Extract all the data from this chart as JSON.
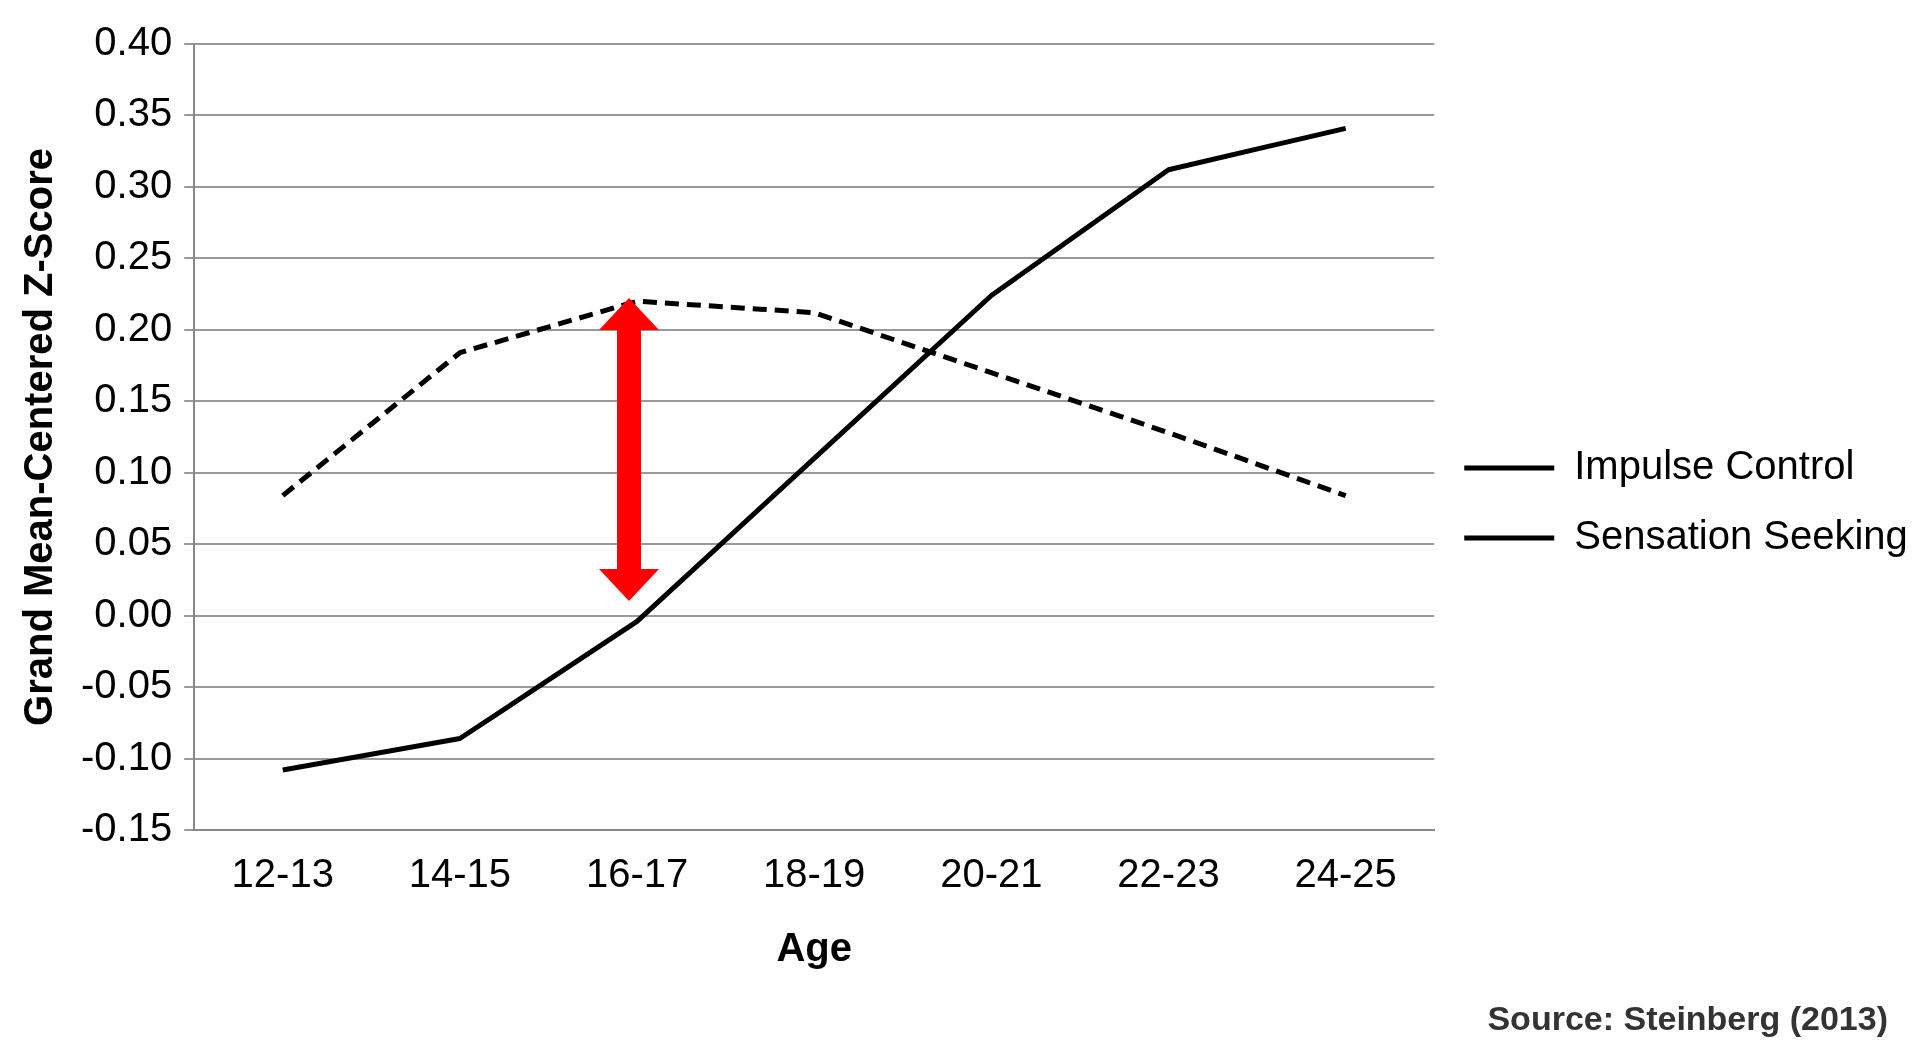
{
  "chart_data": {
    "type": "line",
    "xlabel": "Age",
    "ylabel": "Grand Mean-Centered Z-Score",
    "categories": [
      "12-13",
      "14-15",
      "16-17",
      "18-19",
      "20-21",
      "22-23",
      "24-25"
    ],
    "series": [
      {
        "name": "Impulse Control",
        "color": "#000000",
        "line_style": "solid",
        "values": [
          -0.108,
          -0.086,
          -0.004,
          0.11,
          0.224,
          0.312,
          0.341
        ]
      },
      {
        "name": "Sensation Seeking",
        "color": "#000000",
        "line_style": "dashed",
        "values": [
          0.084,
          0.184,
          0.22,
          0.212,
          0.17,
          0.128,
          0.084
        ]
      }
    ],
    "ylim": [
      -0.15,
      0.4
    ],
    "yticks": [
      {
        "value": -0.15,
        "label": "-0.15"
      },
      {
        "value": -0.1,
        "label": "-0.10"
      },
      {
        "value": -0.05,
        "label": "-0.05"
      },
      {
        "value": 0,
        "label": "0.00"
      },
      {
        "value": 0.05,
        "label": "0.05"
      },
      {
        "value": 0.1,
        "label": "0.10"
      },
      {
        "value": 0.15,
        "label": "0.15"
      },
      {
        "value": 0.2,
        "label": "0.20"
      },
      {
        "value": 0.25,
        "label": "0.25"
      },
      {
        "value": 0.3,
        "label": "0.30"
      },
      {
        "value": 0.35,
        "label": "0.35"
      },
      {
        "value": 0.4,
        "label": "0.40"
      }
    ],
    "grid": "y",
    "legend": "right",
    "marker": "none",
    "annotations": [
      "Source: Steinberg (2013)"
    ]
  }
}
